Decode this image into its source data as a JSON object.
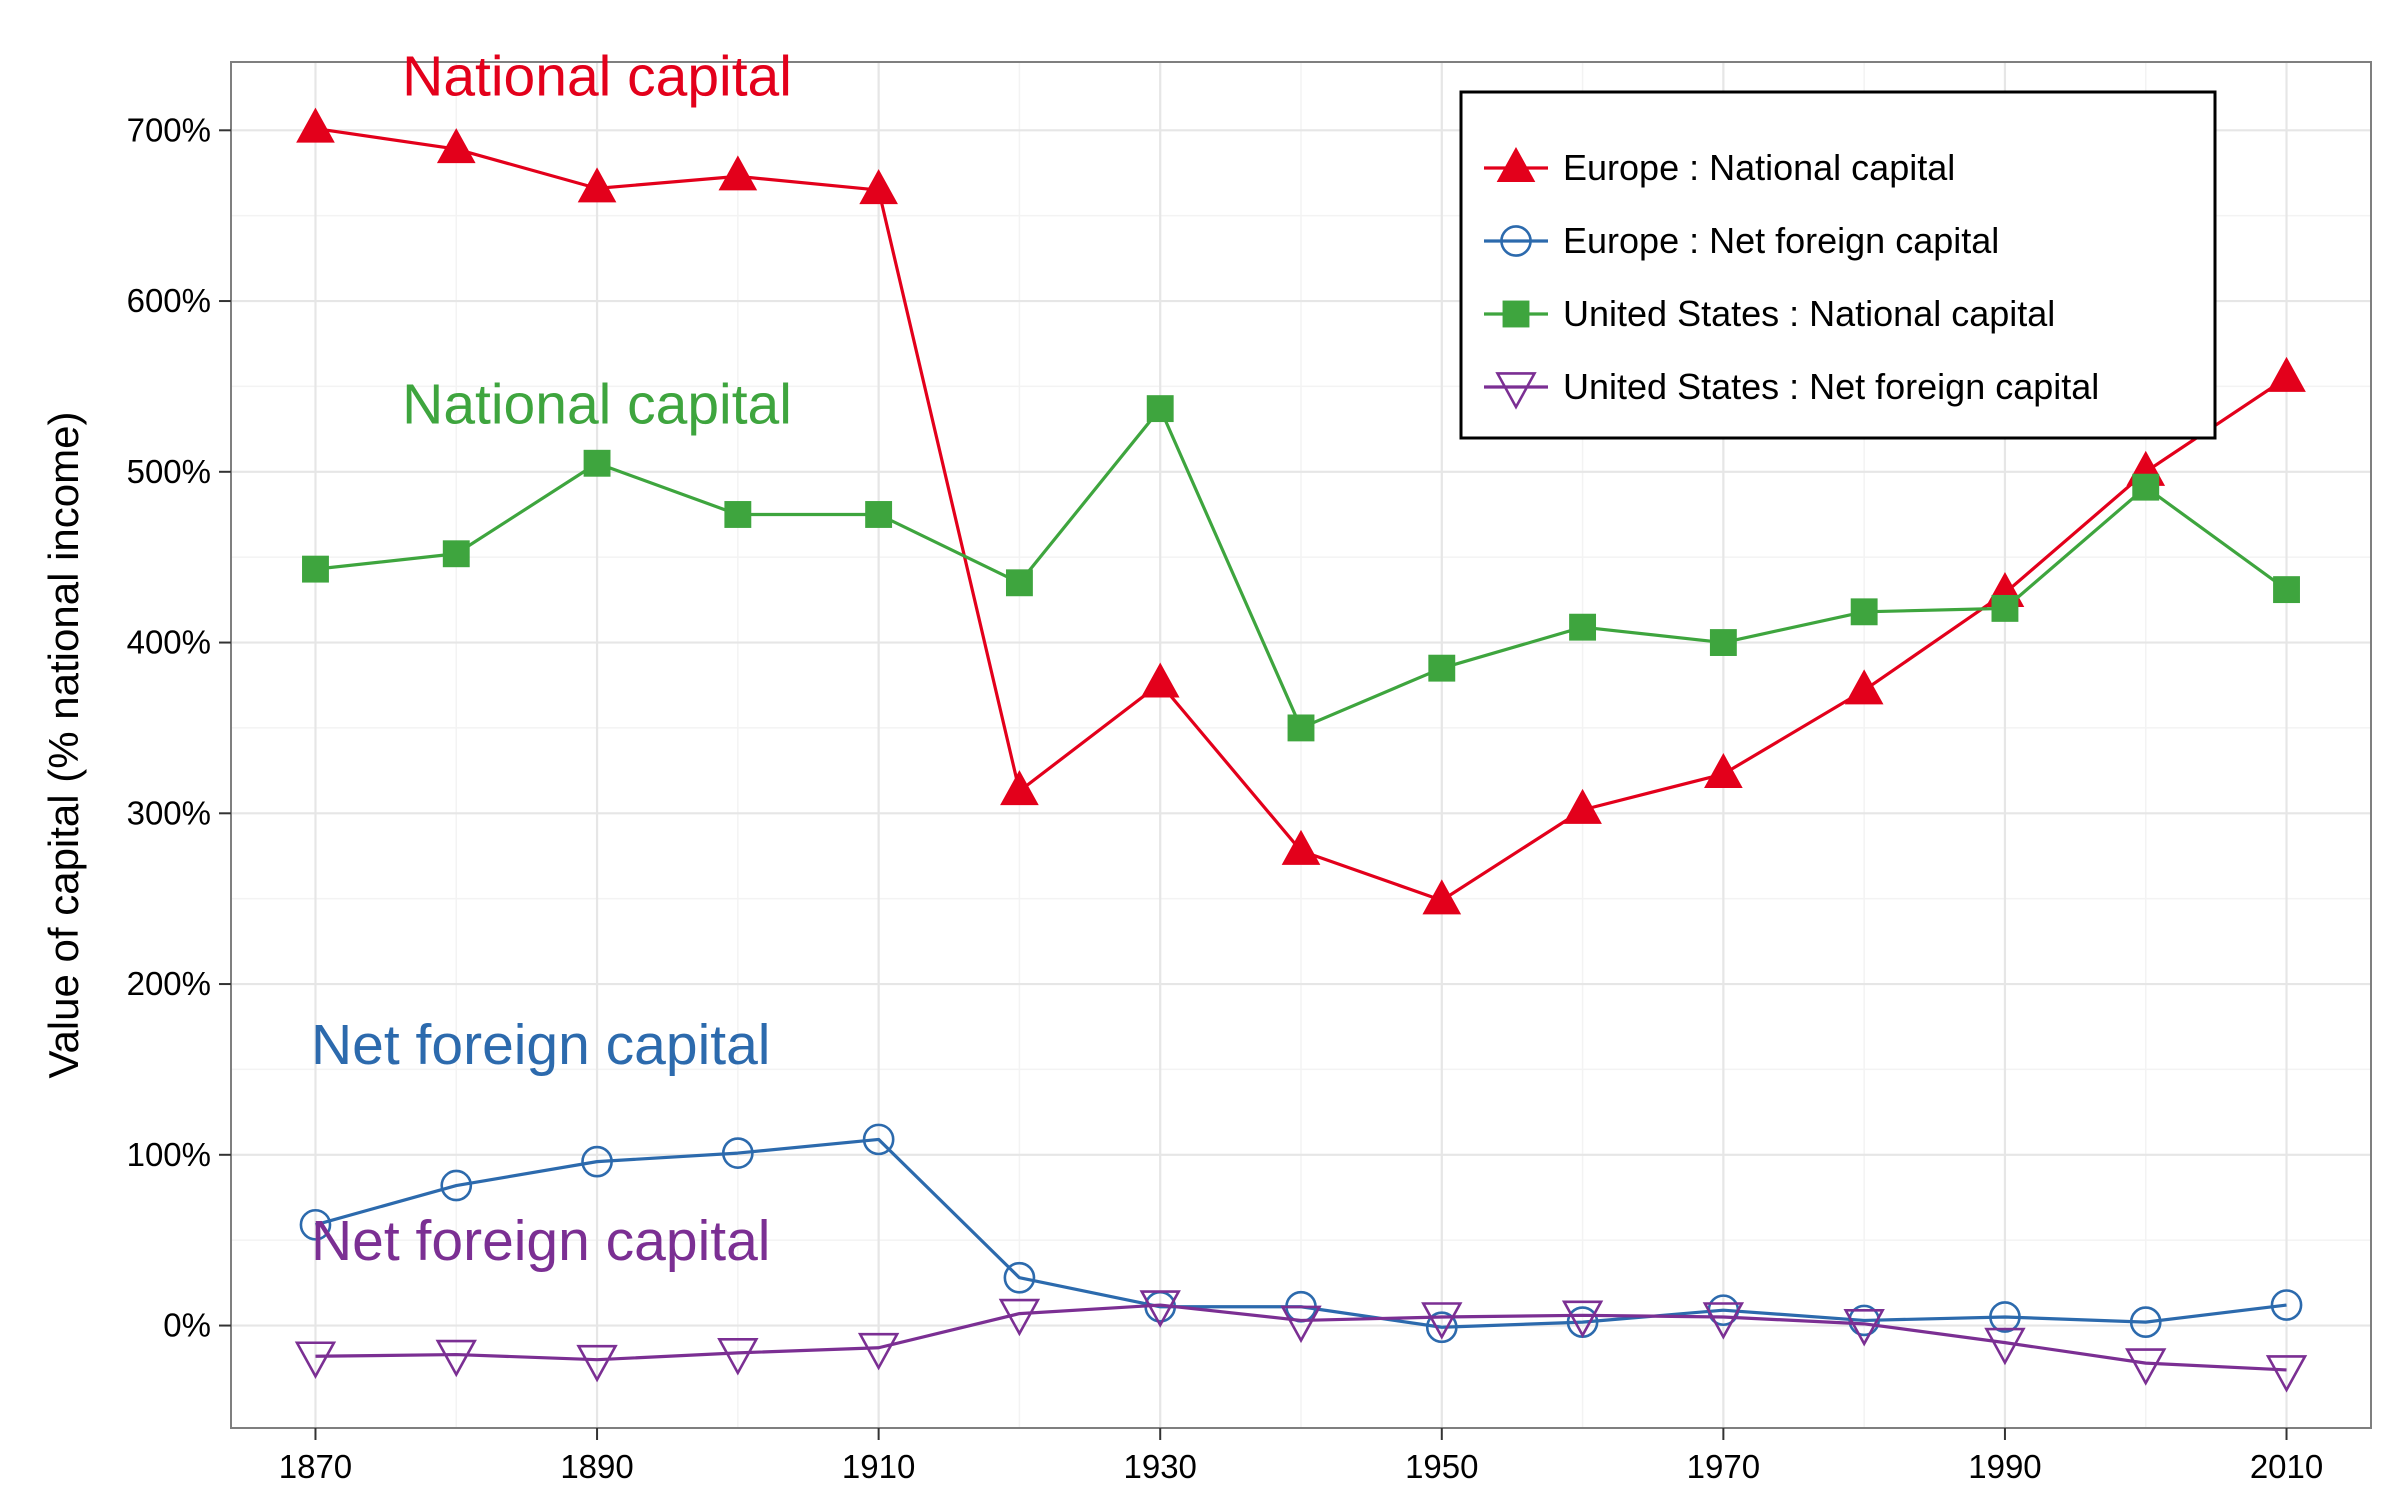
{
  "chart_data": {
    "type": "line",
    "title": "",
    "xlabel": "",
    "ylabel": "Value of capital (% national income)",
    "x": [
      1870,
      1880,
      1890,
      1900,
      1910,
      1920,
      1930,
      1940,
      1950,
      1960,
      1970,
      1980,
      1990,
      2000,
      2010
    ],
    "x_ticks": [
      1870,
      1890,
      1910,
      1930,
      1950,
      1970,
      1990,
      2010
    ],
    "x_tick_labels": [
      "1870",
      "1890",
      "1910",
      "1930",
      "1950",
      "1970",
      "1990",
      "2010"
    ],
    "y_ticks": [
      0,
      100,
      200,
      300,
      400,
      500,
      600,
      700
    ],
    "y_tick_labels": [
      "0%",
      "100%",
      "200%",
      "300%",
      "400%",
      "500%",
      "600%",
      "700%"
    ],
    "xlim": [
      1864,
      2016
    ],
    "ylim": [
      -60,
      740
    ],
    "grid": true,
    "legend_position": "top-right",
    "series": [
      {
        "name": "Europe : National capital",
        "color": "#e3001b",
        "marker": "triangle-up-filled",
        "values": [
          701,
          689,
          666,
          673,
          665,
          313,
          376,
          278,
          249,
          302,
          323,
          372,
          429,
          500,
          555
        ]
      },
      {
        "name": "Europe : Net foreign capital",
        "color": "#2c6aad",
        "marker": "circle-open",
        "values": [
          59,
          82,
          96,
          101,
          109,
          28,
          11,
          11,
          -1,
          2,
          9,
          3,
          5,
          2,
          12
        ]
      },
      {
        "name": "United States : National capital",
        "color": "#3ea53e",
        "marker": "square-filled",
        "values": [
          443,
          452,
          505,
          475,
          475,
          435,
          537,
          350,
          385,
          409,
          400,
          418,
          420,
          491,
          431
        ]
      },
      {
        "name": "United States : Net foreign capital",
        "color": "#7b2f93",
        "marker": "triangle-down-open",
        "values": [
          -18,
          -17,
          -20,
          -16,
          -13,
          7,
          12,
          3,
          5,
          6,
          5,
          1,
          -10,
          -22,
          -26
        ]
      }
    ],
    "annotations": [
      {
        "text": "National capital",
        "color": "#e3001b",
        "x": 1890,
        "y": 732
      },
      {
        "text": "National capital",
        "color": "#3ea53e",
        "x": 1890,
        "y": 540
      },
      {
        "text": "Net foreign capital",
        "color": "#2c6aad",
        "x": 1886,
        "y": 165
      },
      {
        "text": "Net foreign capital",
        "color": "#7b2f93",
        "x": 1886,
        "y": 50
      }
    ]
  }
}
